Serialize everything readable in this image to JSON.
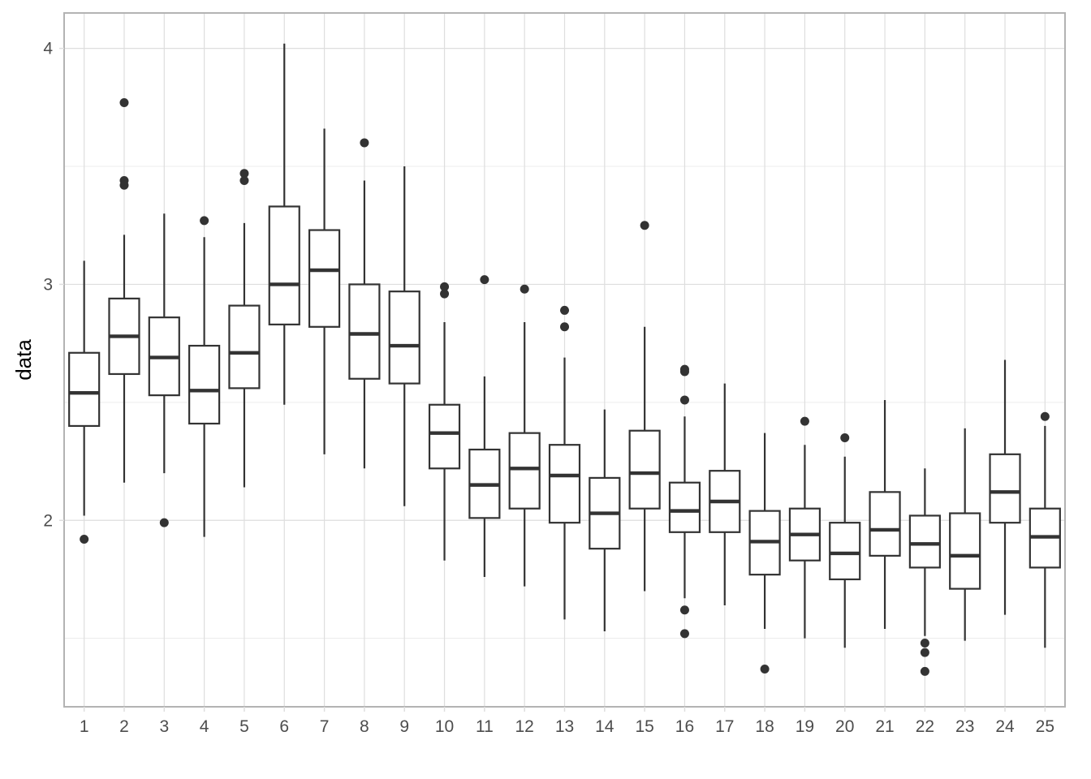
{
  "chart_data": {
    "type": "boxplot",
    "xlabel": "",
    "ylabel": "data",
    "ylim": [
      1.21,
      4.15
    ],
    "y_ticks": [
      2,
      3,
      4
    ],
    "y_tick_labels": [
      "2",
      "3",
      "4"
    ],
    "categories": [
      "1",
      "2",
      "3",
      "4",
      "5",
      "6",
      "7",
      "8",
      "9",
      "10",
      "11",
      "12",
      "13",
      "14",
      "15",
      "16",
      "17",
      "18",
      "19",
      "20",
      "21",
      "22",
      "23",
      "24",
      "25"
    ],
    "grid": true,
    "colors": {
      "panel_border": "#b3b3b3",
      "grid_major": "#dedede",
      "grid_minor": "#ececec",
      "box_stroke": "#333333",
      "outlier": "#333333",
      "tick_text": "#4d4d4d"
    },
    "boxes": [
      {
        "label": "1",
        "lower_whisker": 2.02,
        "q1": 2.4,
        "median": 2.54,
        "q3": 2.71,
        "upper_whisker": 3.1,
        "outliers": [
          1.92
        ]
      },
      {
        "label": "2",
        "lower_whisker": 2.16,
        "q1": 2.62,
        "median": 2.78,
        "q3": 2.94,
        "upper_whisker": 3.21,
        "outliers": [
          3.77,
          3.44,
          3.42
        ]
      },
      {
        "label": "3",
        "lower_whisker": 2.2,
        "q1": 2.53,
        "median": 2.69,
        "q3": 2.86,
        "upper_whisker": 3.3,
        "outliers": [
          1.99
        ]
      },
      {
        "label": "4",
        "lower_whisker": 1.93,
        "q1": 2.41,
        "median": 2.55,
        "q3": 2.74,
        "upper_whisker": 3.2,
        "outliers": [
          3.27
        ]
      },
      {
        "label": "5",
        "lower_whisker": 2.14,
        "q1": 2.56,
        "median": 2.71,
        "q3": 2.91,
        "upper_whisker": 3.26,
        "outliers": [
          3.47,
          3.44
        ]
      },
      {
        "label": "6",
        "lower_whisker": 2.49,
        "q1": 2.83,
        "median": 3.0,
        "q3": 3.33,
        "upper_whisker": 4.02,
        "outliers": []
      },
      {
        "label": "7",
        "lower_whisker": 2.28,
        "q1": 2.82,
        "median": 3.06,
        "q3": 3.23,
        "upper_whisker": 3.66,
        "outliers": []
      },
      {
        "label": "8",
        "lower_whisker": 2.22,
        "q1": 2.6,
        "median": 2.79,
        "q3": 3.0,
        "upper_whisker": 3.44,
        "outliers": [
          3.6
        ]
      },
      {
        "label": "9",
        "lower_whisker": 2.06,
        "q1": 2.58,
        "median": 2.74,
        "q3": 2.97,
        "upper_whisker": 3.5,
        "outliers": []
      },
      {
        "label": "10",
        "lower_whisker": 1.83,
        "q1": 2.22,
        "median": 2.37,
        "q3": 2.49,
        "upper_whisker": 2.84,
        "outliers": [
          2.99,
          2.96
        ]
      },
      {
        "label": "11",
        "lower_whisker": 1.76,
        "q1": 2.01,
        "median": 2.15,
        "q3": 2.3,
        "upper_whisker": 2.61,
        "outliers": [
          3.02
        ]
      },
      {
        "label": "12",
        "lower_whisker": 1.72,
        "q1": 2.05,
        "median": 2.22,
        "q3": 2.37,
        "upper_whisker": 2.84,
        "outliers": [
          2.98
        ]
      },
      {
        "label": "13",
        "lower_whisker": 1.58,
        "q1": 1.99,
        "median": 2.19,
        "q3": 2.32,
        "upper_whisker": 2.69,
        "outliers": [
          2.89,
          2.82
        ]
      },
      {
        "label": "14",
        "lower_whisker": 1.53,
        "q1": 1.88,
        "median": 2.03,
        "q3": 2.18,
        "upper_whisker": 2.47,
        "outliers": []
      },
      {
        "label": "15",
        "lower_whisker": 1.7,
        "q1": 2.05,
        "median": 2.2,
        "q3": 2.38,
        "upper_whisker": 2.82,
        "outliers": [
          3.25
        ]
      },
      {
        "label": "16",
        "lower_whisker": 1.67,
        "q1": 1.95,
        "median": 2.04,
        "q3": 2.16,
        "upper_whisker": 2.44,
        "outliers": [
          2.64,
          2.63,
          2.51,
          1.62,
          1.52
        ]
      },
      {
        "label": "17",
        "lower_whisker": 1.64,
        "q1": 1.95,
        "median": 2.08,
        "q3": 2.21,
        "upper_whisker": 2.58,
        "outliers": []
      },
      {
        "label": "18",
        "lower_whisker": 1.54,
        "q1": 1.77,
        "median": 1.91,
        "q3": 2.04,
        "upper_whisker": 2.37,
        "outliers": [
          1.37
        ]
      },
      {
        "label": "19",
        "lower_whisker": 1.5,
        "q1": 1.83,
        "median": 1.94,
        "q3": 2.05,
        "upper_whisker": 2.32,
        "outliers": [
          2.42
        ]
      },
      {
        "label": "20",
        "lower_whisker": 1.46,
        "q1": 1.75,
        "median": 1.86,
        "q3": 1.99,
        "upper_whisker": 2.27,
        "outliers": [
          2.35
        ]
      },
      {
        "label": "21",
        "lower_whisker": 1.54,
        "q1": 1.85,
        "median": 1.96,
        "q3": 2.12,
        "upper_whisker": 2.51,
        "outliers": []
      },
      {
        "label": "22",
        "lower_whisker": 1.51,
        "q1": 1.8,
        "median": 1.9,
        "q3": 2.02,
        "upper_whisker": 2.22,
        "outliers": [
          1.48,
          1.44,
          1.36
        ]
      },
      {
        "label": "23",
        "lower_whisker": 1.49,
        "q1": 1.71,
        "median": 1.85,
        "q3": 2.03,
        "upper_whisker": 2.39,
        "outliers": []
      },
      {
        "label": "24",
        "lower_whisker": 1.6,
        "q1": 1.99,
        "median": 2.12,
        "q3": 2.28,
        "upper_whisker": 2.68,
        "outliers": []
      },
      {
        "label": "25",
        "lower_whisker": 1.46,
        "q1": 1.8,
        "median": 1.93,
        "q3": 2.05,
        "upper_whisker": 2.4,
        "outliers": [
          2.44
        ]
      }
    ]
  }
}
